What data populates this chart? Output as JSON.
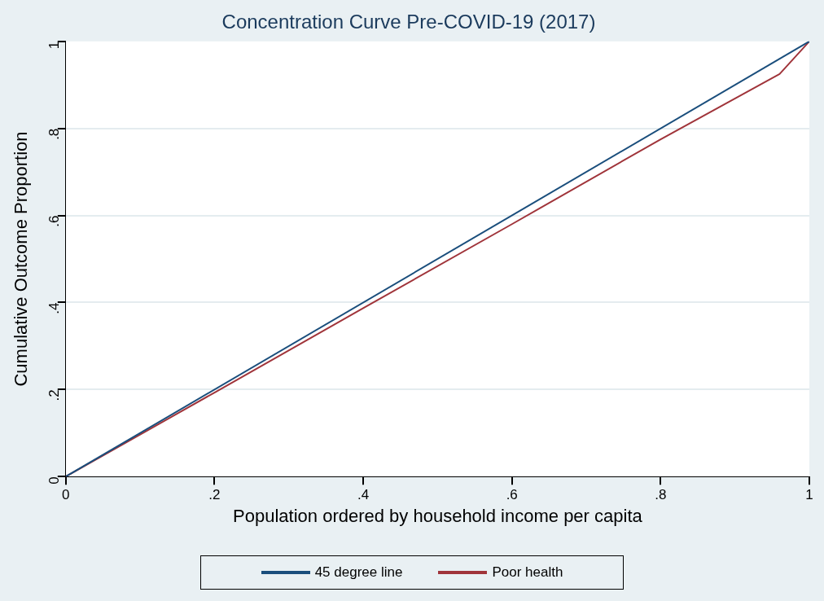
{
  "chart_data": {
    "type": "line",
    "title": "Concentration Curve Pre-COVID-19 (2017)",
    "xlabel": "Population ordered by household income per capita",
    "ylabel": "Cumulative Outcome Proportion",
    "xlim": [
      0,
      1
    ],
    "ylim": [
      0,
      1
    ],
    "xticks": [
      0,
      {
        "value": 0.2,
        "label": ".2"
      },
      {
        "value": 0.4,
        "label": ".4"
      },
      {
        "value": 0.6,
        "label": ".6"
      },
      {
        "value": 0.8,
        "label": ".8"
      },
      1
    ],
    "yticks": [
      0,
      {
        "value": 0.2,
        "label": ".2"
      },
      {
        "value": 0.4,
        "label": ".4"
      },
      {
        "value": 0.6,
        "label": ".6"
      },
      {
        "value": 0.8,
        "label": ".8"
      },
      1
    ],
    "grid": "y",
    "legend": "bottom",
    "marker": "none",
    "line_style": "solid",
    "series": [
      {
        "name": "45 degree line",
        "color": "#1a4e7c",
        "x": [
          0,
          1
        ],
        "values": [
          0,
          1
        ]
      },
      {
        "name": "Poor health",
        "color": "#a0343a",
        "x": [
          0,
          0.2,
          0.4,
          0.6,
          0.8,
          0.96,
          1
        ],
        "values": [
          0,
          0.193,
          0.387,
          0.58,
          0.775,
          0.925,
          1
        ]
      }
    ]
  }
}
